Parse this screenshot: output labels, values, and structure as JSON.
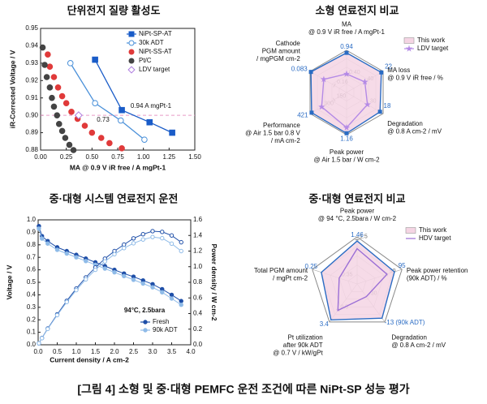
{
  "chart_data": [
    {
      "type": "line",
      "title": "단위전지 질량 활성도",
      "x_label": "MA @ 0.9 V iR free / A mgPt-1",
      "y_label": "iR-Corrected Voltage / V",
      "xlim": [
        0,
        1.5
      ],
      "xticks": [
        {
          "value": 0,
          "label": "0.00"
        },
        0.25,
        {
          "value": 0.5,
          "label": "0.50"
        },
        0.75,
        {
          "value": 1,
          "label": "1.00"
        },
        1.25,
        {
          "value": 1.5,
          "label": "1.50"
        }
      ],
      "ylim": [
        0.88,
        0.95
      ],
      "yticks": [
        0.88,
        0.89,
        {
          "value": 0.9,
          "label": "0.90"
        },
        0.91,
        0.92,
        0.93,
        0.94,
        0.95
      ],
      "reference_y": 0.9,
      "reference_color": "#e89ac8",
      "legend": "upper right",
      "annotations": [
        "0.94 A mgPt-1",
        "0.73"
      ],
      "series": [
        {
          "name": "NiPt-SP-AT",
          "color": "#1a5cc8",
          "marker": "square",
          "filled": true,
          "line": true,
          "x": [
            0.53,
            0.79,
            1.06,
            1.28
          ],
          "values": [
            0.932,
            0.903,
            0.896,
            0.89
          ]
        },
        {
          "name": "30k ADT",
          "color": "#4a90d9",
          "marker": "circle",
          "filled": false,
          "line": true,
          "x": [
            0.29,
            0.53,
            0.78,
            1.01
          ],
          "values": [
            0.93,
            0.907,
            0.897,
            0.886
          ]
        },
        {
          "name": "NiPt-SS-AT",
          "color": "#e03a3a",
          "marker": "circle",
          "filled": true,
          "line": false,
          "x": [
            0.07,
            0.09,
            0.13,
            0.17,
            0.21,
            0.25,
            0.3,
            0.36,
            0.43,
            0.5,
            0.59,
            0.67,
            0.79
          ],
          "values": [
            0.935,
            0.928,
            0.922,
            0.916,
            0.911,
            0.907,
            0.902,
            0.898,
            0.894,
            0.89,
            0.887,
            0.884,
            0.881
          ]
        },
        {
          "name": "Pt/C",
          "color": "#444444",
          "marker": "circle",
          "filled": true,
          "line": false,
          "x": [
            0.02,
            0.04,
            0.06,
            0.09,
            0.11,
            0.13,
            0.16,
            0.18,
            0.21,
            0.24,
            0.28,
            0.32
          ],
          "values": [
            0.939,
            0.929,
            0.922,
            0.916,
            0.91,
            0.905,
            0.9,
            0.895,
            0.891,
            0.887,
            0.883,
            0.88
          ]
        },
        {
          "name": "LDV target",
          "color": "#b07fe0",
          "marker": "diamond",
          "filled": false,
          "line": false,
          "x": [
            0.37
          ],
          "values": [
            0.9
          ]
        }
      ]
    },
    {
      "type": "radar",
      "title": "소형 연료전지 비교",
      "axes": [
        {
          "label": [
            "MA",
            "@ 0.9 V iR free / A mgPt-1"
          ],
          "lim": [
            0,
            1.0
          ],
          "ticks": [
            {
              "value": 0.4,
              "label": "0.40"
            }
          ]
        },
        {
          "label": [
            "MA loss",
            "@ 0.9 V iR free / %"
          ],
          "lim": [
            60,
            20
          ],
          "ticks": [
            40
          ]
        },
        {
          "label": [
            "Degradation",
            "@ 0.8 A cm-2 / mV"
          ],
          "lim": [
            50,
            15
          ],
          "ticks": [
            30
          ]
        },
        {
          "label": [
            "Peak power",
            "@ Air 1.5 bar / W cm-2"
          ],
          "lim": [
            0,
            1.2
          ],
          "ticks": []
        },
        {
          "label": [
            "Performance",
            "@ Air 1.5 bar 0.8 V",
            "/ mA cm-2"
          ],
          "lim": [
            0,
            440
          ],
          "ticks": [
            300,
            150
          ]
        },
        {
          "label": [
            "Cathode",
            "PGM amount",
            "/ mgPGM cm-2"
          ],
          "lim": [
            0.2,
            0.08
          ],
          "ticks": [
            0.16
          ]
        }
      ],
      "series": [
        {
          "name": "This work",
          "color": "#2b6cc4",
          "fill": "#f5d5e4",
          "marker": "square",
          "data_labels": true,
          "values": [
            0.94,
            22,
            18,
            1.16,
            421,
            0.083
          ]
        },
        {
          "name": "LDV target",
          "color": "#b48ae6",
          "marker": "star",
          "values": [
            0.44,
            40,
            30,
            1.0,
            300,
            0.125
          ]
        }
      ]
    },
    {
      "type": "line",
      "title": "중·대형 시스템 연료전지 운전",
      "x_label": "Current density / A cm-2",
      "y_label": "Voltage / V",
      "y2_label": "Power density / W cm-2",
      "xlim": [
        0,
        4
      ],
      "xticks": [
        {
          "value": 0,
          "label": "0.0"
        },
        0.5,
        {
          "value": 1,
          "label": "1.0"
        },
        1.5,
        {
          "value": 2,
          "label": "2.0"
        },
        2.5,
        {
          "value": 3,
          "label": "3.0"
        },
        3.5,
        {
          "value": 4,
          "label": "4.0"
        }
      ],
      "ylim": [
        0,
        1.0
      ],
      "yticks": [
        {
          "value": 0,
          "label": "0.0"
        },
        0.1,
        0.2,
        0.3,
        0.4,
        0.5,
        0.6,
        0.7,
        0.8,
        0.9,
        {
          "value": 1,
          "label": "1.0"
        }
      ],
      "y2lim": [
        0,
        1.6
      ],
      "y2ticks": [
        {
          "value": 0,
          "label": "0.0"
        },
        0.2,
        0.4,
        0.6,
        0.8,
        {
          "value": 1,
          "label": "1.0"
        },
        1.2,
        1.4,
        1.6
      ],
      "legend": "lower right",
      "annotations": [
        "94°C, 2.5bara"
      ],
      "series": [
        {
          "name": "Fresh",
          "color": "#1f4fa8",
          "marker": "circle",
          "filled": true,
          "line": true,
          "x": [
            0.02,
            0.1,
            0.25,
            0.5,
            0.75,
            1.0,
            1.25,
            1.5,
            1.75,
            2.0,
            2.25,
            2.5,
            2.75,
            3.0,
            3.25,
            3.5,
            3.75
          ],
          "values": [
            0.95,
            0.87,
            0.83,
            0.78,
            0.75,
            0.72,
            0.69,
            0.66,
            0.63,
            0.6,
            0.57,
            0.545,
            0.515,
            0.485,
            0.445,
            0.4,
            0.35
          ]
        },
        {
          "name": "90k ADT",
          "color": "#8fbbe8",
          "marker": "circle",
          "filled": true,
          "line": true,
          "x": [
            0.02,
            0.1,
            0.25,
            0.5,
            0.75,
            1.0,
            1.25,
            1.5,
            1.75,
            2.0,
            2.25,
            2.5,
            2.75,
            3.0,
            3.25,
            3.5,
            3.75
          ],
          "values": [
            0.93,
            0.85,
            0.81,
            0.76,
            0.73,
            0.7,
            0.67,
            0.64,
            0.61,
            0.58,
            0.55,
            0.52,
            0.49,
            0.46,
            0.42,
            0.37,
            0.32
          ]
        },
        {
          "color": "#1f4fa8",
          "marker": "circle",
          "filled": false,
          "line": true,
          "axis": "y2",
          "x": [
            0.02,
            0.1,
            0.25,
            0.5,
            0.75,
            1.0,
            1.25,
            1.5,
            1.75,
            2.0,
            2.25,
            2.5,
            2.75,
            3.0,
            3.25,
            3.5,
            3.75
          ],
          "values": [
            0.019,
            0.087,
            0.208,
            0.39,
            0.563,
            0.72,
            0.863,
            0.99,
            1.103,
            1.2,
            1.283,
            1.363,
            1.416,
            1.455,
            1.446,
            1.4,
            1.313
          ]
        },
        {
          "color": "#8fbbe8",
          "marker": "circle",
          "filled": false,
          "line": true,
          "axis": "y2",
          "x": [
            0.02,
            0.1,
            0.25,
            0.5,
            0.75,
            1.0,
            1.25,
            1.5,
            1.75,
            2.0,
            2.25,
            2.5,
            2.75,
            3.0,
            3.25,
            3.5,
            3.75
          ],
          "values": [
            0.019,
            0.085,
            0.203,
            0.38,
            0.548,
            0.7,
            0.838,
            0.96,
            1.068,
            1.16,
            1.238,
            1.3,
            1.348,
            1.38,
            1.365,
            1.295,
            1.2
          ]
        }
      ]
    },
    {
      "type": "radar",
      "title": "중·대형 연료전지 비교",
      "axes": [
        {
          "label": [
            "Peak power",
            "@ 94 °C, 2.5bara / W cm-2"
          ],
          "lim": [
            0,
            1.6
          ],
          "ticks": [
            1.5
          ]
        },
        {
          "label": [
            "Peak power retention",
            "(90k ADT) / %"
          ],
          "lim": [
            70,
            100
          ],
          "ticks": [
            90
          ]
        },
        {
          "label": [
            "Degradation",
            "@ 0.8 A cm-2 / mV"
          ],
          "lim": [
            -40,
            -10
          ],
          "ticks": [
            -30
          ]
        },
        {
          "label": [
            "Pt utilization",
            "after 90k ADT",
            "@ 0.7 V / kW/gPt"
          ],
          "lim": [
            0,
            3.6
          ],
          "ticks": [
            2.5
          ]
        },
        {
          "label": [
            "Total PGM amount",
            "/ mgPt cm-2"
          ],
          "lim": [
            0.45,
            0.2
          ],
          "ticks": [
            0.35
          ]
        }
      ],
      "series": [
        {
          "name": "This work",
          "color": "#2b6cc4",
          "fill": "#f5d5e4",
          "data_labels": true,
          "values": [
            1.46,
            95,
            -13,
            3.4,
            0.25
          ],
          "value_labels": [
            "1.46",
            "95",
            "-13 (90k ADT)",
            "3.4",
            "0.25"
          ]
        },
        {
          "name": "HDV target",
          "color": "#9b6fd6",
          "values": [
            1.2,
            90,
            -30,
            2.5,
            0.35
          ]
        }
      ]
    }
  ],
  "caption": "[그림 4] 소형 및 중·대형 PEMFC 운전 조건에 따른 NiPt-SP 성능 평가"
}
